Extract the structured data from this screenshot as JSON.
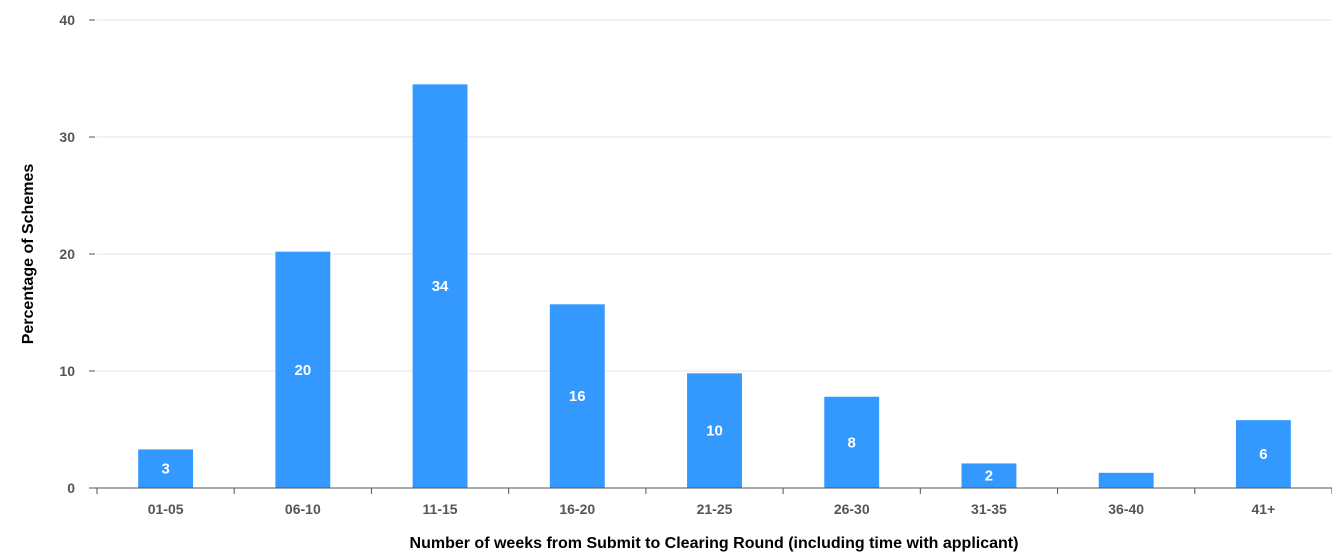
{
  "chart_data": {
    "type": "bar",
    "title": "",
    "xlabel": "Number of weeks from Submit to Clearing Round (including time with applicant)",
    "ylabel": "Percentage of Schemes",
    "categories": [
      "01-05",
      "06-10",
      "11-15",
      "16-20",
      "21-25",
      "26-30",
      "31-35",
      "36-40",
      "41+"
    ],
    "values": [
      3.3,
      20.2,
      34.5,
      15.7,
      9.8,
      7.8,
      2.1,
      1.3,
      5.8
    ],
    "data_labels": [
      "3",
      "20",
      "34",
      "16",
      "10",
      "8",
      "2",
      "",
      "6"
    ],
    "ylim": [
      0,
      40
    ],
    "yticks": [
      0,
      10,
      20,
      30,
      40
    ],
    "grid": true,
    "legend": "none",
    "bar_color": "#3399ff",
    "grid_color": "#e6e6e6",
    "axis_color": "#555555"
  }
}
